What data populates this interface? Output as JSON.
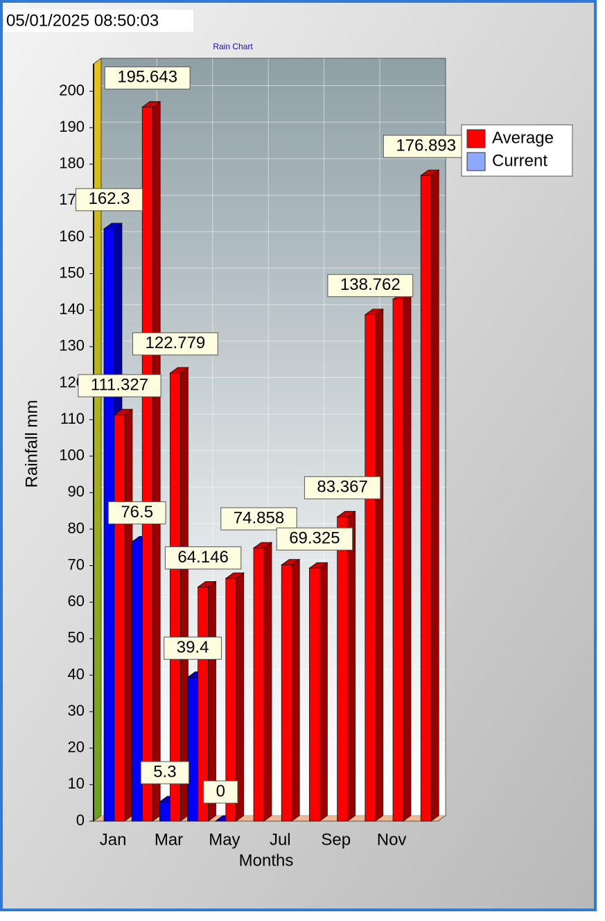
{
  "timestamp": "05/01/2025 08:50:03",
  "chart_data": {
    "type": "bar3d",
    "title": "Rain Chart",
    "x_label": "Months",
    "y_label": "Rainfall mm",
    "categories": [
      "Jan",
      null,
      "Mar",
      null,
      "May",
      null,
      "Jul",
      null,
      "Sep",
      null,
      "Nov",
      null
    ],
    "series": [
      {
        "name": "Current",
        "color": "#0000ff",
        "values": [
          162.3,
          76.5,
          5.3,
          39.4,
          0,
          null,
          null,
          null,
          null,
          null,
          null,
          null
        ],
        "value_labels": [
          "162.3",
          "76.5",
          "5.3",
          "39.4",
          "0",
          null,
          null,
          null,
          null,
          null,
          null,
          null
        ]
      },
      {
        "name": "Average",
        "color": "#ff0000",
        "values": [
          111.327,
          195.643,
          122.779,
          64.146,
          66.5,
          74.858,
          70.2,
          69.325,
          83.367,
          138.762,
          143,
          176.893
        ],
        "value_labels": [
          "111.327",
          "195.643",
          "122.779",
          "64.146",
          null,
          "74.858",
          null,
          "69.325",
          "83.367",
          "138.762",
          null,
          "176.893"
        ]
      }
    ],
    "legend_order": [
      1,
      0
    ],
    "ylim": [
      0,
      207.5
    ],
    "yticks": [
      0,
      10,
      20,
      30,
      40,
      50,
      60,
      70,
      80,
      90,
      100,
      110,
      120,
      130,
      140,
      150,
      160,
      170,
      180,
      190,
      200
    ],
    "grid": true,
    "legend": "upper right"
  }
}
